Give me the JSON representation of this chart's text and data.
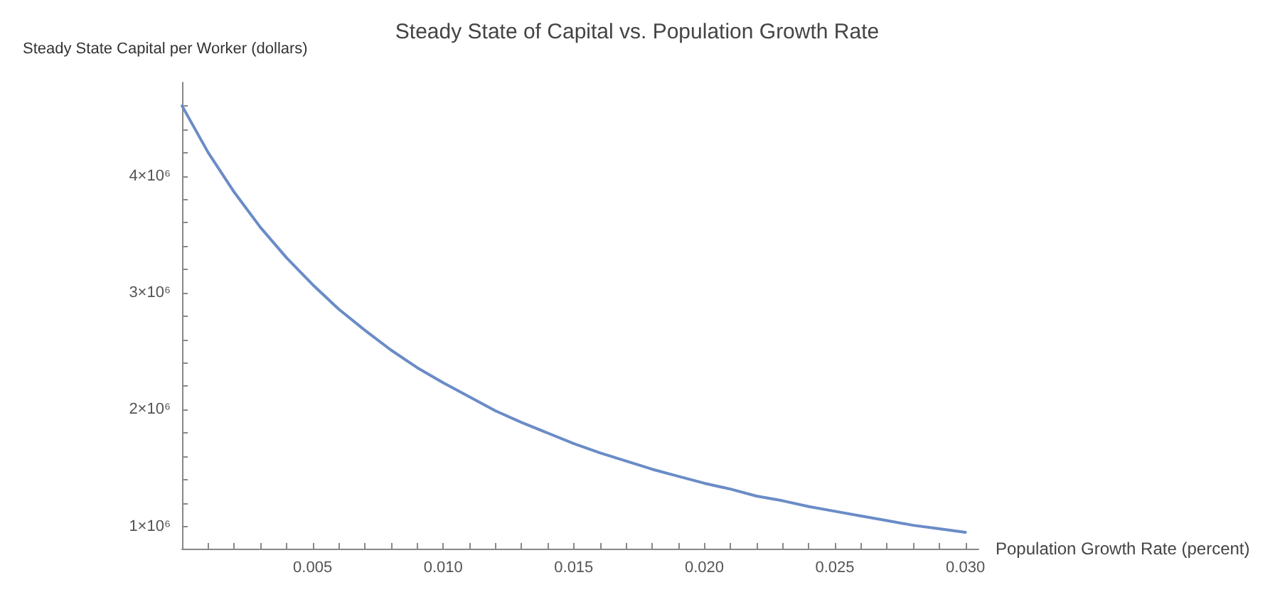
{
  "chart_data": {
    "type": "line",
    "title": "Steady State of Capital vs. Population Growth Rate",
    "xlabel": "Population Growth Rate (percent)",
    "ylabel": "Steady State Capital per Worker (dollars)",
    "x": [
      0,
      0.001,
      0.002,
      0.003,
      0.004,
      0.005,
      0.006,
      0.007,
      0.008,
      0.009,
      0.01,
      0.011,
      0.012,
      0.013,
      0.014,
      0.015,
      0.016,
      0.017,
      0.018,
      0.019,
      0.02,
      0.021,
      0.022,
      0.023,
      0.024,
      0.025,
      0.026,
      0.027,
      0.028,
      0.029,
      0.03
    ],
    "series": [
      {
        "color": "#6a8cc7",
        "values": [
          4600000,
          4200000,
          3860000,
          3560000,
          3300000,
          3070000,
          2860000,
          2680000,
          2510000,
          2360000,
          2230000,
          2110000,
          1990000,
          1890000,
          1800000,
          1710000,
          1630000,
          1560000,
          1490000,
          1430000,
          1370000,
          1320000,
          1260000,
          1220000,
          1170000,
          1130000,
          1090000,
          1050000,
          1010000,
          980000,
          950000
        ]
      }
    ],
    "xlim": [
      0,
      0.0305
    ],
    "ylim": [
      810000,
      4800000
    ],
    "xticks": [
      {
        "value": 0,
        "label": null
      },
      {
        "value": 0.001,
        "label": null
      },
      {
        "value": 0.002,
        "label": null
      },
      {
        "value": 0.003,
        "label": null
      },
      {
        "value": 0.004,
        "label": null
      },
      {
        "value": 0.005,
        "label": "0.005"
      },
      {
        "value": 0.006,
        "label": null
      },
      {
        "value": 0.007,
        "label": null
      },
      {
        "value": 0.008,
        "label": null
      },
      {
        "value": 0.009,
        "label": null
      },
      {
        "value": 0.01,
        "label": "0.010"
      },
      {
        "value": 0.011,
        "label": null
      },
      {
        "value": 0.012,
        "label": null
      },
      {
        "value": 0.013,
        "label": null
      },
      {
        "value": 0.014,
        "label": null
      },
      {
        "value": 0.015,
        "label": "0.015"
      },
      {
        "value": 0.016,
        "label": null
      },
      {
        "value": 0.017,
        "label": null
      },
      {
        "value": 0.018,
        "label": null
      },
      {
        "value": 0.019,
        "label": null
      },
      {
        "value": 0.02,
        "label": "0.020"
      },
      {
        "value": 0.021,
        "label": null
      },
      {
        "value": 0.022,
        "label": null
      },
      {
        "value": 0.023,
        "label": null
      },
      {
        "value": 0.024,
        "label": null
      },
      {
        "value": 0.025,
        "label": "0.025"
      },
      {
        "value": 0.026,
        "label": null
      },
      {
        "value": 0.027,
        "label": null
      },
      {
        "value": 0.028,
        "label": null
      },
      {
        "value": 0.029,
        "label": null
      },
      {
        "value": 0.03,
        "label": "0.030"
      }
    ],
    "yticks": [
      {
        "value": 1000000,
        "label": "1×10⁶"
      },
      {
        "value": 1200000,
        "label": null
      },
      {
        "value": 1400000,
        "label": null
      },
      {
        "value": 1600000,
        "label": null
      },
      {
        "value": 1800000,
        "label": null
      },
      {
        "value": 2000000,
        "label": "2×10⁶"
      },
      {
        "value": 2200000,
        "label": null
      },
      {
        "value": 2400000,
        "label": null
      },
      {
        "value": 2600000,
        "label": null
      },
      {
        "value": 2800000,
        "label": null
      },
      {
        "value": 3000000,
        "label": "3×10⁶"
      },
      {
        "value": 3200000,
        "label": null
      },
      {
        "value": 3400000,
        "label": null
      },
      {
        "value": 3600000,
        "label": null
      },
      {
        "value": 3800000,
        "label": null
      },
      {
        "value": 4000000,
        "label": "4×10⁶"
      },
      {
        "value": 4200000,
        "label": null
      },
      {
        "value": 4400000,
        "label": null
      },
      {
        "value": 4600000,
        "label": null
      }
    ],
    "grid": false,
    "marker": "none",
    "line_style": "solid"
  }
}
